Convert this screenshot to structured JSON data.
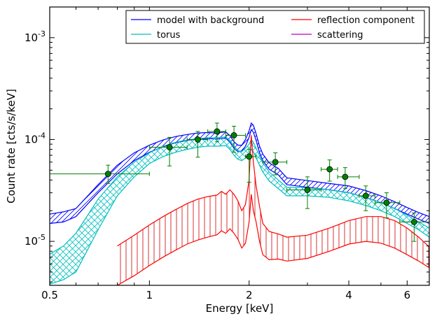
{
  "chart_data": {
    "type": "line",
    "xlabel": "Energy [keV]",
    "ylabel": "Count rate [cts/s/keV]",
    "xscale": "log",
    "yscale": "log",
    "xlim": [
      0.5,
      7.0
    ],
    "ylim": [
      3.7e-06,
      0.002
    ],
    "x_ticks": [
      {
        "value": 0.5,
        "label": "0.5"
      },
      {
        "value": 1,
        "label": "1"
      },
      {
        "value": 2,
        "label": "2"
      },
      {
        "value": 4,
        "label": "4"
      },
      {
        "value": 6,
        "label": "6"
      }
    ],
    "y_ticks": [
      {
        "value": 1e-05,
        "base": "10",
        "exp": "-5"
      },
      {
        "value": 0.0001,
        "base": "10",
        "exp": "-4"
      },
      {
        "value": 0.001,
        "base": "10",
        "exp": "-3"
      }
    ],
    "legend": {
      "placement": "top-right",
      "entries": [
        {
          "label": "model with background",
          "color": "#0000ff"
        },
        {
          "label": "reflection component",
          "color": "#ff0000"
        },
        {
          "label": "torus",
          "color": "#00bfbf"
        },
        {
          "label": "scattering",
          "color": "#bf00bf"
        }
      ]
    },
    "series": [
      {
        "name": "model with background",
        "color": "#0000ff",
        "hatch": "diagonal",
        "x": [
          0.5,
          0.55,
          0.6,
          0.7,
          0.8,
          0.9,
          1.0,
          1.1,
          1.2,
          1.3,
          1.4,
          1.5,
          1.6,
          1.7,
          1.75,
          1.8,
          1.85,
          1.9,
          1.95,
          2.0,
          2.03,
          2.06,
          2.1,
          2.15,
          2.2,
          2.3,
          2.45,
          2.6,
          3.0,
          3.5,
          4.0,
          4.5,
          5.0,
          5.5,
          6.0,
          6.5,
          7.0
        ],
        "lower": [
          1.5e-05,
          1.55e-05,
          1.75e-05,
          3e-05,
          4.6e-05,
          6.2e-05,
          7.5e-05,
          8.5e-05,
          9.3e-05,
          9.8e-05,
          0.000101,
          0.000102,
          0.000101,
          0.000103,
          9.4e-05,
          8.2e-05,
          7.6e-05,
          7.6e-05,
          8.6e-05,
          0.000105,
          0.000125,
          0.000118,
          9.8e-05,
          7.4e-05,
          6.2e-05,
          5.1e-05,
          4.5e-05,
          3.6e-05,
          3.4e-05,
          3.2e-05,
          3e-05,
          2.7e-05,
          2.4e-05,
          2.1e-05,
          1.85e-05,
          1.65e-05,
          1.5e-05
        ],
        "upper": [
          1.85e-05,
          1.95e-05,
          2.1e-05,
          3.6e-05,
          5.6e-05,
          7.4e-05,
          8.8e-05,
          9.9e-05,
          0.000107,
          0.000112,
          0.000116,
          0.000117,
          0.000116,
          0.000119,
          0.000109,
          9.5e-05,
          8.8e-05,
          8.8e-05,
          0.0001,
          0.000122,
          0.000145,
          0.000138,
          0.000114,
          8.6e-05,
          7.2e-05,
          5.9e-05,
          5.2e-05,
          4.2e-05,
          3.95e-05,
          3.7e-05,
          3.5e-05,
          3.15e-05,
          2.8e-05,
          2.45e-05,
          2.15e-05,
          1.92e-05,
          1.75e-05
        ]
      },
      {
        "name": "torus",
        "color": "#00bfbf",
        "hatch": "crosshatch",
        "x": [
          0.5,
          0.55,
          0.6,
          0.7,
          0.8,
          0.9,
          1.0,
          1.1,
          1.2,
          1.3,
          1.4,
          1.5,
          1.6,
          1.7,
          1.75,
          1.8,
          1.85,
          1.9,
          1.95,
          2.0,
          2.03,
          2.06,
          2.1,
          2.15,
          2.2,
          2.3,
          2.45,
          2.6,
          3.0,
          3.5,
          4.0,
          4.5,
          5.0,
          5.5,
          6.0,
          6.5,
          7.0
        ],
        "lower": [
          3.8e-06,
          4.2e-06,
          5e-06,
          1.3e-05,
          2.8e-05,
          4.3e-05,
          5.8e-05,
          6.8e-05,
          7.5e-05,
          8e-05,
          8.4e-05,
          8.6e-05,
          8.6e-05,
          8.7e-05,
          8e-05,
          7e-05,
          6.4e-05,
          6.2e-05,
          6.6e-05,
          7.2e-05,
          8e-05,
          7.6e-05,
          6.6e-05,
          5.6e-05,
          4.8e-05,
          3.9e-05,
          3.3e-05,
          2.8e-05,
          2.8e-05,
          2.7e-05,
          2.5e-05,
          2.25e-05,
          2e-05,
          1.75e-05,
          1.5e-05,
          1.3e-05,
          1.1e-05
        ],
        "upper": [
          7.5e-06,
          9e-06,
          1.2e-05,
          2.6e-05,
          4.3e-05,
          6e-05,
          7.4e-05,
          8.6e-05,
          9.4e-05,
          9.9e-05,
          0.000102,
          0.000104,
          0.000104,
          0.000106,
          9.8e-05,
          8.6e-05,
          7.8e-05,
          7.6e-05,
          8.2e-05,
          9e-05,
          0.0001,
          9.4e-05,
          8.2e-05,
          6.9e-05,
          5.9e-05,
          4.8e-05,
          4e-05,
          3.4e-05,
          3.35e-05,
          3.2e-05,
          3e-05,
          2.7e-05,
          2.4e-05,
          2.1e-05,
          1.8e-05,
          1.55e-05,
          1.35e-05
        ]
      },
      {
        "name": "reflection component",
        "color": "#ff0000",
        "hatch": "vertical",
        "x": [
          0.8,
          0.9,
          1.0,
          1.1,
          1.2,
          1.3,
          1.4,
          1.5,
          1.6,
          1.65,
          1.7,
          1.75,
          1.8,
          1.85,
          1.9,
          1.95,
          2.0,
          2.03,
          2.06,
          2.1,
          2.15,
          2.2,
          2.3,
          2.45,
          2.6,
          3.0,
          3.5,
          4.0,
          4.5,
          5.0,
          5.5,
          6.0,
          6.5,
          7.0
        ],
        "lower": [
          3.7e-06,
          4.6e-06,
          5.8e-06,
          7e-06,
          8.2e-06,
          9.4e-06,
          1.03e-05,
          1.1e-05,
          1.16e-05,
          1.27e-05,
          1.2e-05,
          1.33e-05,
          1.2e-05,
          1.05e-05,
          8.6e-06,
          9.6e-06,
          1.55e-05,
          2.9e-05,
          2e-05,
          1.55e-05,
          1e-05,
          7.4e-06,
          6.6e-06,
          6.7e-06,
          6.4e-06,
          6.8e-06,
          8e-06,
          9.4e-06,
          1e-05,
          9.6e-06,
          8.6e-06,
          7.4e-06,
          6.4e-06,
          5.5e-06
        ],
        "upper": [
          9e-06,
          1.15e-05,
          1.45e-05,
          1.75e-05,
          2.05e-05,
          2.35e-05,
          2.6e-05,
          2.75e-05,
          2.85e-05,
          3.1e-05,
          2.9e-05,
          3.2e-05,
          2.9e-05,
          2.5e-05,
          2e-05,
          2.3e-05,
          4e-05,
          0.00011,
          6e-05,
          3.5e-05,
          2.2e-05,
          1.5e-05,
          1.25e-05,
          1.18e-05,
          1.1e-05,
          1.15e-05,
          1.35e-05,
          1.6e-05,
          1.75e-05,
          1.75e-05,
          1.6e-05,
          1.35e-05,
          1.1e-05,
          8.8e-06
        ]
      },
      {
        "name": "scattering",
        "color": "#bf00bf",
        "hatch": "none",
        "x": [],
        "lower": [],
        "upper": []
      }
    ],
    "data_points": {
      "color": "#008000",
      "points": [
        {
          "x": 0.75,
          "y": 4.6e-05,
          "xlo": 0.5,
          "xhi": 1.0,
          "ylo": 3.7e-05,
          "yhi": 5.6e-05
        },
        {
          "x": 1.15,
          "y": 8.4e-05,
          "xlo": 1.0,
          "xhi": 1.3,
          "ylo": 5.5e-05,
          "yhi": 0.000105
        },
        {
          "x": 1.4,
          "y": 0.0001,
          "xlo": 1.3,
          "xhi": 1.5,
          "ylo": 6.7e-05,
          "yhi": 0.00012
        },
        {
          "x": 1.6,
          "y": 0.00012,
          "xlo": 1.5,
          "xhi": 1.7,
          "ylo": 9.5e-05,
          "yhi": 0.000145
        },
        {
          "x": 1.8,
          "y": 0.00011,
          "xlo": 1.7,
          "xhi": 1.95,
          "ylo": 7.5e-05,
          "yhi": 0.000135
        },
        {
          "x": 2.0,
          "y": 6.8e-05,
          "xlo": 1.95,
          "xhi": 2.1,
          "ylo": 3.8e-05,
          "yhi": 8e-05
        },
        {
          "x": 2.4,
          "y": 6e-05,
          "xlo": 2.2,
          "xhi": 2.6,
          "ylo": 4.5e-05,
          "yhi": 7.4e-05
        },
        {
          "x": 3.0,
          "y": 3.2e-05,
          "xlo": 2.6,
          "xhi": 3.3,
          "ylo": 2.1e-05,
          "yhi": 4.3e-05
        },
        {
          "x": 3.5,
          "y": 5.1e-05,
          "xlo": 3.3,
          "xhi": 3.7,
          "ylo": 3.9e-05,
          "yhi": 6.3e-05
        },
        {
          "x": 3.9,
          "y": 4.3e-05,
          "xlo": 3.7,
          "xhi": 4.3,
          "ylo": 3.3e-05,
          "yhi": 5.3e-05
        },
        {
          "x": 4.5,
          "y": 2.8e-05,
          "xlo": 4.3,
          "xhi": 4.8,
          "ylo": 2e-05,
          "yhi": 3.5e-05
        },
        {
          "x": 5.2,
          "y": 2.4e-05,
          "xlo": 4.8,
          "xhi": 5.7,
          "ylo": 1.7e-05,
          "yhi": 3e-05
        },
        {
          "x": 6.3,
          "y": 1.55e-05,
          "xlo": 5.7,
          "xhi": 7.0,
          "ylo": 1e-05,
          "yhi": 1.9e-05
        }
      ]
    }
  }
}
